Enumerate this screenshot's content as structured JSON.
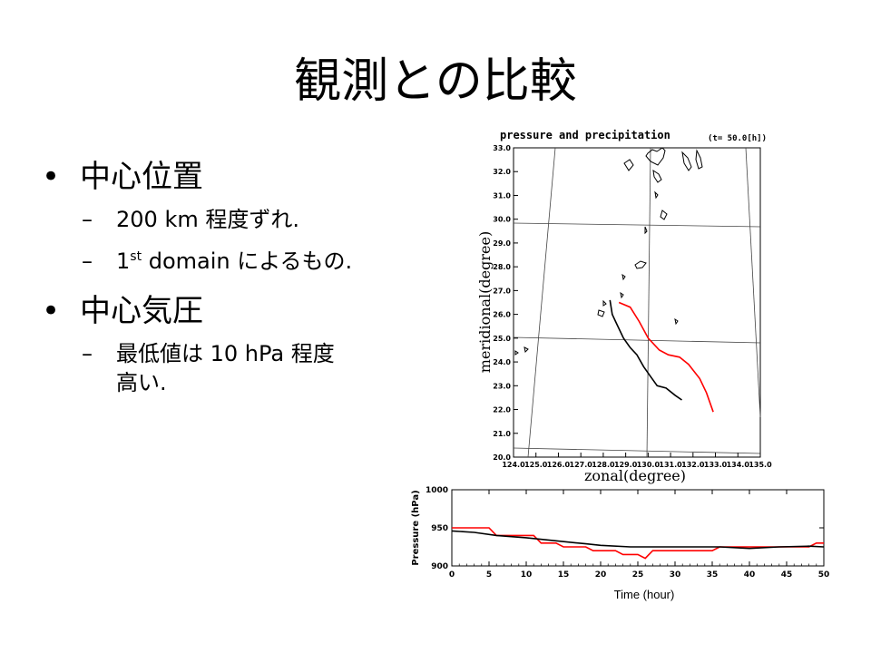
{
  "slide": {
    "title": "観測との比較",
    "sections": [
      {
        "heading": "中心位置",
        "items": [
          {
            "text": "200 km 程度ずれ."
          },
          {
            "pre": "1",
            "sup": "st",
            "post": " domain によるもの."
          }
        ]
      },
      {
        "heading": "中心気圧",
        "items": [
          {
            "text": "最低値は 10 hPa 程度",
            "text2": "高い."
          }
        ]
      }
    ],
    "bullet": "•",
    "dash": "–"
  },
  "chart_data": [
    {
      "type": "line",
      "title": "pressure and precipitation",
      "subtitle": "(t= 50.0[h])",
      "xlabel": "zonal(degree)",
      "ylabel": "meridional(degree)",
      "xticks": [
        "124.0",
        "125.0",
        "126.0",
        "127.0",
        "128.0",
        "129.0",
        "130.0",
        "131.0",
        "132.0",
        "133.0",
        "134.0",
        "135.0"
      ],
      "yticks": [
        "20.0",
        "21.0",
        "22.0",
        "23.0",
        "24.0",
        "25.0",
        "26.0",
        "27.0",
        "28.0",
        "29.0",
        "30.0",
        "31.0",
        "32.0",
        "33.0"
      ],
      "xlim": [
        124,
        135
      ],
      "ylim": [
        20,
        33
      ],
      "series": [
        {
          "color": "#ff0000",
          "points": [
            [
              128.7,
              26.5
            ],
            [
              129.2,
              26.3
            ],
            [
              129.6,
              25.7
            ],
            [
              130.0,
              25.0
            ],
            [
              130.5,
              24.5
            ],
            [
              130.9,
              24.3
            ],
            [
              131.4,
              24.2
            ],
            [
              131.8,
              23.9
            ],
            [
              132.3,
              23.3
            ],
            [
              132.6,
              22.7
            ],
            [
              132.9,
              21.9
            ]
          ]
        },
        {
          "color": "#000000",
          "points": [
            [
              128.3,
              26.6
            ],
            [
              128.4,
              26.0
            ],
            [
              128.6,
              25.6
            ],
            [
              128.9,
              25.0
            ],
            [
              129.2,
              24.6
            ],
            [
              129.5,
              24.3
            ],
            [
              129.8,
              23.8
            ],
            [
              130.1,
              23.4
            ],
            [
              130.4,
              23.0
            ],
            [
              130.8,
              22.9
            ],
            [
              131.2,
              22.6
            ],
            [
              131.5,
              22.4
            ]
          ]
        }
      ]
    },
    {
      "type": "line",
      "xlabel": "Time (hour)",
      "ylabel": "Pressure (hPa)",
      "xlim": [
        0,
        50
      ],
      "ylim": [
        900,
        1000
      ],
      "xticks": [
        0,
        5,
        10,
        15,
        20,
        25,
        30,
        35,
        40,
        45,
        50
      ],
      "yticks": [
        900,
        950,
        1000
      ],
      "series": [
        {
          "color": "#ff0000",
          "x": [
            0,
            5,
            6,
            11,
            12,
            14,
            15,
            18,
            19,
            22,
            23,
            25,
            26,
            27,
            35,
            36,
            44,
            45,
            48,
            49,
            50
          ],
          "y": [
            950,
            950,
            940,
            940,
            930,
            930,
            925,
            925,
            920,
            920,
            915,
            915,
            910,
            920,
            920,
            925,
            925,
            925,
            925,
            930,
            930
          ]
        },
        {
          "color": "#000000",
          "x": [
            0,
            3,
            6,
            10,
            14,
            18,
            20,
            24,
            28,
            32,
            36,
            40,
            44,
            48,
            50
          ],
          "y": [
            946,
            944,
            940,
            937,
            933,
            929,
            927,
            925,
            925,
            925,
            925,
            923,
            925,
            926,
            925
          ]
        }
      ]
    }
  ]
}
